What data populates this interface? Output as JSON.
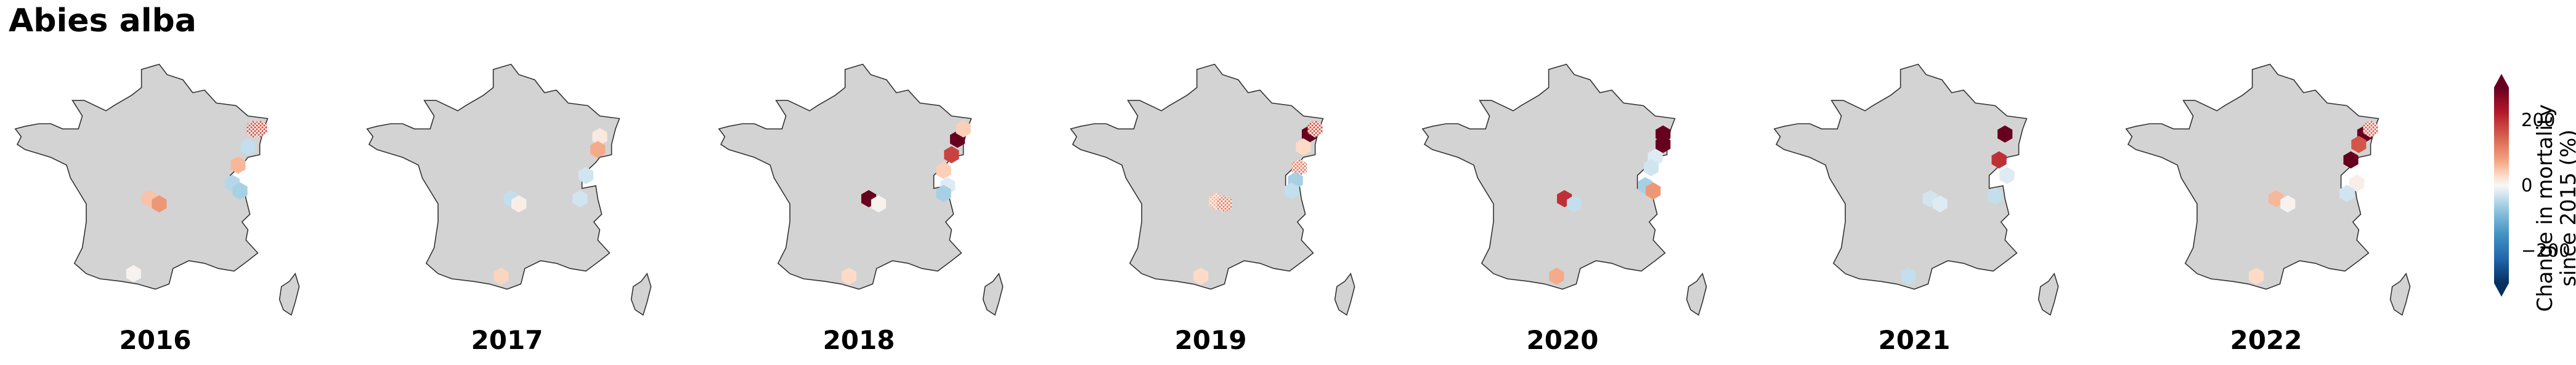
{
  "title": "Abies alba",
  "colorbar": {
    "label_line1": "Change in mortality",
    "label_line2": "since 2015 (%)",
    "ticks": [
      {
        "value": 200,
        "label": "200"
      },
      {
        "value": 0,
        "label": "0"
      },
      {
        "value": -200,
        "label": "−200"
      }
    ],
    "vmin": -300,
    "vmax": 300,
    "cmap": "RdBu_r",
    "extend": "both"
  },
  "colors": {
    "land": "#d3d3d3",
    "outline": "#333333",
    "very_high": "#67001f",
    "high": "#b2182b",
    "mid_high": "#d6604d",
    "low_high": "#f4a582",
    "pale_high": "#fddbc7",
    "neutral": "#f7f7f7",
    "pale_low": "#d1e5f0",
    "low": "#92c5de"
  },
  "panels": [
    {
      "year": "2016",
      "cells": [
        {
          "lon": 7.3,
          "lat": 48.6,
          "change": 160,
          "hatched": true
        },
        {
          "lon": 7.6,
          "lat": 48.6,
          "change": 160,
          "hatched": true
        },
        {
          "lon": 7.0,
          "lat": 47.9,
          "change": -40
        },
        {
          "lon": 6.5,
          "lat": 47.2,
          "change": 60
        },
        {
          "lon": 6.2,
          "lat": 46.5,
          "change": -50
        },
        {
          "lon": 6.6,
          "lat": 46.2,
          "change": -60
        },
        {
          "lon": 2.0,
          "lat": 45.9,
          "change": 50
        },
        {
          "lon": 2.5,
          "lat": 45.7,
          "change": 90
        },
        {
          "lon": 1.2,
          "lat": 43.0,
          "change": 5
        }
      ]
    },
    {
      "year": "2017",
      "cells": [
        {
          "lon": 7.0,
          "lat": 48.3,
          "change": 15
        },
        {
          "lon": 6.9,
          "lat": 47.8,
          "change": 70
        },
        {
          "lon": 6.3,
          "lat": 46.8,
          "change": -30
        },
        {
          "lon": 2.5,
          "lat": 45.9,
          "change": -40
        },
        {
          "lon": 2.9,
          "lat": 45.7,
          "change": 10
        },
        {
          "lon": 6.0,
          "lat": 45.9,
          "change": -30
        },
        {
          "lon": 2.0,
          "lat": 42.9,
          "change": 35
        }
      ]
    },
    {
      "year": "2018",
      "cells": [
        {
          "lon": 7.3,
          "lat": 48.2,
          "change": 300
        },
        {
          "lon": 7.6,
          "lat": 48.6,
          "change": 40
        },
        {
          "lon": 7.0,
          "lat": 47.6,
          "change": 180
        },
        {
          "lon": 6.6,
          "lat": 47.0,
          "change": 40
        },
        {
          "lon": 6.8,
          "lat": 46.4,
          "change": -20
        },
        {
          "lon": 6.6,
          "lat": 46.1,
          "change": -60
        },
        {
          "lon": 2.8,
          "lat": 45.9,
          "change": 300
        },
        {
          "lon": 3.3,
          "lat": 45.7,
          "change": 5
        },
        {
          "lon": 1.8,
          "lat": 42.9,
          "change": 30
        }
      ]
    },
    {
      "year": "2019",
      "cells": [
        {
          "lon": 7.3,
          "lat": 48.4,
          "change": 300
        },
        {
          "lon": 7.6,
          "lat": 48.6,
          "change": 160,
          "hatched": true
        },
        {
          "lon": 7.0,
          "lat": 47.9,
          "change": 30
        },
        {
          "lon": 6.8,
          "lat": 47.1,
          "change": 120,
          "hatched": true
        },
        {
          "lon": 6.6,
          "lat": 46.6,
          "change": -60
        },
        {
          "lon": 6.4,
          "lat": 46.2,
          "change": -40
        },
        {
          "lon": 2.6,
          "lat": 45.8,
          "change": 70,
          "hatched": true
        },
        {
          "lon": 3.0,
          "lat": 45.7,
          "change": 120,
          "hatched": true
        },
        {
          "lon": 1.8,
          "lat": 42.9,
          "change": 30
        }
      ]
    },
    {
      "year": "2020",
      "cells": [
        {
          "lon": 7.4,
          "lat": 48.4,
          "change": 300
        },
        {
          "lon": 7.4,
          "lat": 48.0,
          "change": 300
        },
        {
          "lon": 7.0,
          "lat": 47.5,
          "change": -20
        },
        {
          "lon": 6.8,
          "lat": 47.1,
          "change": -30
        },
        {
          "lon": 6.5,
          "lat": 46.4,
          "change": -60
        },
        {
          "lon": 6.9,
          "lat": 46.2,
          "change": 90
        },
        {
          "lon": 2.4,
          "lat": 45.9,
          "change": 200
        },
        {
          "lon": 2.9,
          "lat": 45.7,
          "change": -40
        },
        {
          "lon": 2.0,
          "lat": 42.9,
          "change": 70
        }
      ]
    },
    {
      "year": "2021",
      "cells": [
        {
          "lon": 6.9,
          "lat": 48.4,
          "change": 300
        },
        {
          "lon": 6.6,
          "lat": 47.4,
          "change": 200
        },
        {
          "lon": 7.0,
          "lat": 46.8,
          "change": -20
        },
        {
          "lon": 6.4,
          "lat": 46.0,
          "change": -40
        },
        {
          "lon": 3.1,
          "lat": 45.9,
          "change": -30
        },
        {
          "lon": 3.6,
          "lat": 45.7,
          "change": -20
        },
        {
          "lon": 2.0,
          "lat": 42.9,
          "change": -40
        }
      ]
    },
    {
      "year": "2022",
      "cells": [
        {
          "lon": 7.3,
          "lat": 48.4,
          "change": 300
        },
        {
          "lon": 7.6,
          "lat": 48.6,
          "change": 140,
          "hatched": true
        },
        {
          "lon": 7.0,
          "lat": 48.0,
          "change": 160
        },
        {
          "lon": 6.6,
          "lat": 47.4,
          "change": 300
        },
        {
          "lon": 6.9,
          "lat": 46.5,
          "change": 10
        },
        {
          "lon": 6.4,
          "lat": 46.1,
          "change": -30
        },
        {
          "lon": 2.8,
          "lat": 45.9,
          "change": 60
        },
        {
          "lon": 3.4,
          "lat": 45.7,
          "change": 5
        },
        {
          "lon": 1.8,
          "lat": 42.9,
          "change": 30
        }
      ]
    }
  ]
}
